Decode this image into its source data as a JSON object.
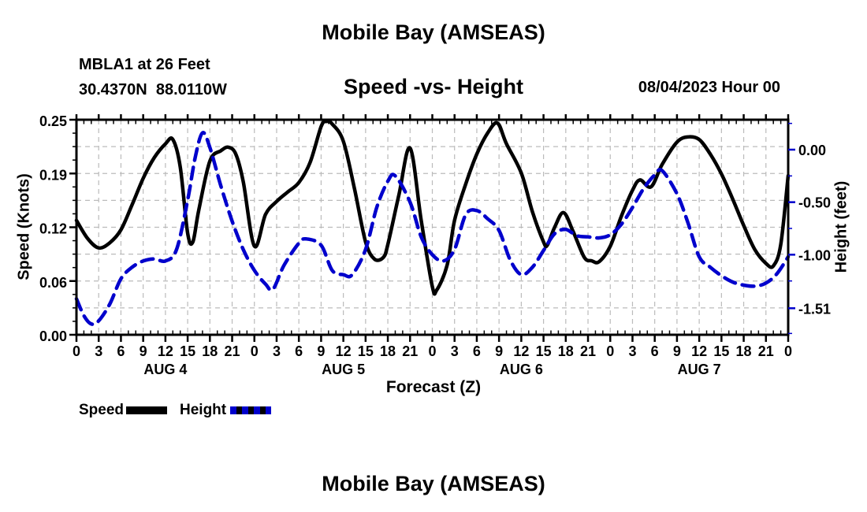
{
  "header": {
    "title": "Mobile Bay (AMSEAS)",
    "station_line1": "MBLA1 at 26 Feet",
    "station_line2": "30.4370N  88.0110W",
    "subtitle": "Speed -vs- Height",
    "datetime": "08/04/2023 Hour 00"
  },
  "footer": {
    "title": "Mobile Bay (AMSEAS)"
  },
  "legend": [
    {
      "label": "Speed",
      "color": "#000000",
      "style": "solid"
    },
    {
      "label": "Height",
      "color": "#0000cc",
      "style": "dashed"
    }
  ],
  "colors": {
    "speed_line": "#000000",
    "height_line": "#0000cc",
    "grid": "#bbbbbb",
    "frame": "#000000"
  },
  "chart_data": {
    "type": "line",
    "title": "Mobile Bay (AMSEAS)",
    "subtitle": "Speed -vs- Height",
    "xlabel": "Forecast (Z)",
    "grid": true,
    "x_axis": {
      "min": 0,
      "max": 96,
      "major_step_hours": 3,
      "minor_step_hours": 1,
      "tick_labels": [
        "0",
        "3",
        "6",
        "9",
        "12",
        "15",
        "18",
        "21",
        "0",
        "3",
        "6",
        "9",
        "12",
        "15",
        "18",
        "21",
        "0",
        "3",
        "6",
        "9",
        "12",
        "15",
        "18",
        "21",
        "0",
        "3",
        "6",
        "9",
        "12",
        "15",
        "18",
        "21",
        "0"
      ],
      "day_labels": [
        {
          "hour": 12,
          "label": "AUG 4"
        },
        {
          "hour": 36,
          "label": "AUG 5"
        },
        {
          "hour": 60,
          "label": "AUG 6"
        },
        {
          "hour": 84,
          "label": "AUG 7"
        }
      ]
    },
    "left_axis": {
      "label": "Speed (Knots)",
      "min": 0,
      "max": 0.25,
      "ticks": [
        0,
        0.0625,
        0.125,
        0.1875,
        0.25
      ],
      "tick_labels": [
        "0.00",
        "0.06",
        "0.12",
        "0.19",
        "0.25"
      ],
      "minor_tick_step": 0.015625,
      "grid_step": 0.03125
    },
    "right_axis": {
      "label": "Height (feet)",
      "axis_top": 0.285,
      "axis_bottom": -1.7625,
      "ticks": [
        0,
        -0.5,
        -1.0,
        -1.51
      ],
      "tick_labels": [
        "0.00",
        "-0.50",
        "-1.00",
        "-1.51"
      ],
      "minor_ticks": [
        0.25,
        -0.25,
        -0.75,
        -1.25,
        -1.75
      ]
    },
    "series": [
      {
        "name": "Speed",
        "axis": "left",
        "units": "knots",
        "color": "#000000",
        "dash": "solid",
        "points": [
          [
            0,
            0.133
          ],
          [
            1.5,
            0.112
          ],
          [
            3,
            0.101
          ],
          [
            4.5,
            0.107
          ],
          [
            6,
            0.122
          ],
          [
            7.5,
            0.151
          ],
          [
            9,
            0.182
          ],
          [
            10.5,
            0.206
          ],
          [
            12,
            0.222
          ],
          [
            13,
            0.227
          ],
          [
            14,
            0.195
          ],
          [
            15,
            0.118
          ],
          [
            15.7,
            0.108
          ],
          [
            16.5,
            0.145
          ],
          [
            18,
            0.202
          ],
          [
            19.5,
            0.214
          ],
          [
            20.5,
            0.218
          ],
          [
            21.5,
            0.21
          ],
          [
            22.5,
            0.178
          ],
          [
            24,
            0.103
          ],
          [
            25.5,
            0.14
          ],
          [
            27,
            0.155
          ],
          [
            28.5,
            0.166
          ],
          [
            30,
            0.177
          ],
          [
            31.5,
            0.2
          ],
          [
            33,
            0.242
          ],
          [
            33.7,
            0.248
          ],
          [
            34.5,
            0.245
          ],
          [
            36,
            0.225
          ],
          [
            37.5,
            0.17
          ],
          [
            39,
            0.108
          ],
          [
            40.2,
            0.088
          ],
          [
            41.4,
            0.09
          ],
          [
            42,
            0.105
          ],
          [
            43.5,
            0.163
          ],
          [
            45,
            0.217
          ],
          [
            46.5,
            0.133
          ],
          [
            48,
            0.056
          ],
          [
            48.6,
            0.052
          ],
          [
            50,
            0.081
          ],
          [
            51,
            0.133
          ],
          [
            52.5,
            0.175
          ],
          [
            54,
            0.21
          ],
          [
            55.5,
            0.235
          ],
          [
            56.8,
            0.246
          ],
          [
            58,
            0.222
          ],
          [
            60,
            0.188
          ],
          [
            61.5,
            0.143
          ],
          [
            63,
            0.108
          ],
          [
            63.5,
            0.104
          ],
          [
            64.5,
            0.125
          ],
          [
            65.7,
            0.142
          ],
          [
            67,
            0.12
          ],
          [
            68.5,
            0.09
          ],
          [
            69.5,
            0.086
          ],
          [
            70.5,
            0.085
          ],
          [
            72,
            0.103
          ],
          [
            73.5,
            0.138
          ],
          [
            75,
            0.168
          ],
          [
            76,
            0.18
          ],
          [
            77.5,
            0.172
          ],
          [
            79,
            0.198
          ],
          [
            81,
            0.224
          ],
          [
            82.5,
            0.23
          ],
          [
            84,
            0.227
          ],
          [
            85.5,
            0.21
          ],
          [
            87,
            0.187
          ],
          [
            88.5,
            0.158
          ],
          [
            90,
            0.127
          ],
          [
            91.5,
            0.099
          ],
          [
            93,
            0.083
          ],
          [
            94,
            0.08
          ],
          [
            95,
            0.105
          ],
          [
            96,
            0.185
          ]
        ]
      },
      {
        "name": "Height",
        "axis": "right",
        "units": "feet",
        "color": "#0000cc",
        "dash": "dashed",
        "points": [
          [
            0,
            -1.42
          ],
          [
            1,
            -1.58
          ],
          [
            2,
            -1.66
          ],
          [
            3,
            -1.63
          ],
          [
            4.5,
            -1.47
          ],
          [
            6,
            -1.23
          ],
          [
            7.5,
            -1.12
          ],
          [
            9,
            -1.06
          ],
          [
            10.5,
            -1.04
          ],
          [
            12,
            -1.06
          ],
          [
            13.5,
            -0.95
          ],
          [
            15,
            -0.48
          ],
          [
            16,
            -0.08
          ],
          [
            17,
            0.16
          ],
          [
            18,
            0.02
          ],
          [
            19.5,
            -0.35
          ],
          [
            21,
            -0.68
          ],
          [
            22.5,
            -0.95
          ],
          [
            24,
            -1.15
          ],
          [
            25.5,
            -1.28
          ],
          [
            26.5,
            -1.33
          ],
          [
            28,
            -1.1
          ],
          [
            30,
            -0.89
          ],
          [
            31,
            -0.85
          ],
          [
            33,
            -0.91
          ],
          [
            34.5,
            -1.15
          ],
          [
            36,
            -1.19
          ],
          [
            37.2,
            -1.19
          ],
          [
            39,
            -0.95
          ],
          [
            40.5,
            -0.55
          ],
          [
            42,
            -0.3
          ],
          [
            43,
            -0.25
          ],
          [
            45,
            -0.5
          ],
          [
            46.5,
            -0.83
          ],
          [
            48,
            -1.0
          ],
          [
            49.5,
            -1.06
          ],
          [
            51,
            -0.95
          ],
          [
            52.5,
            -0.62
          ],
          [
            54,
            -0.58
          ],
          [
            55.5,
            -0.66
          ],
          [
            57,
            -0.77
          ],
          [
            58.5,
            -1.05
          ],
          [
            60,
            -1.19
          ],
          [
            61.5,
            -1.12
          ],
          [
            63,
            -0.96
          ],
          [
            64.5,
            -0.8
          ],
          [
            66,
            -0.76
          ],
          [
            67.5,
            -0.82
          ],
          [
            69,
            -0.83
          ],
          [
            70.5,
            -0.84
          ],
          [
            72,
            -0.81
          ],
          [
            73.5,
            -0.71
          ],
          [
            75,
            -0.55
          ],
          [
            76.5,
            -0.37
          ],
          [
            78,
            -0.24
          ],
          [
            79,
            -0.2
          ],
          [
            81,
            -0.42
          ],
          [
            82.5,
            -0.7
          ],
          [
            84,
            -1.02
          ],
          [
            85.5,
            -1.12
          ],
          [
            87,
            -1.2
          ],
          [
            88.5,
            -1.26
          ],
          [
            90,
            -1.29
          ],
          [
            91.5,
            -1.3
          ],
          [
            93,
            -1.27
          ],
          [
            94.5,
            -1.18
          ],
          [
            96,
            -1.02
          ]
        ]
      }
    ]
  }
}
